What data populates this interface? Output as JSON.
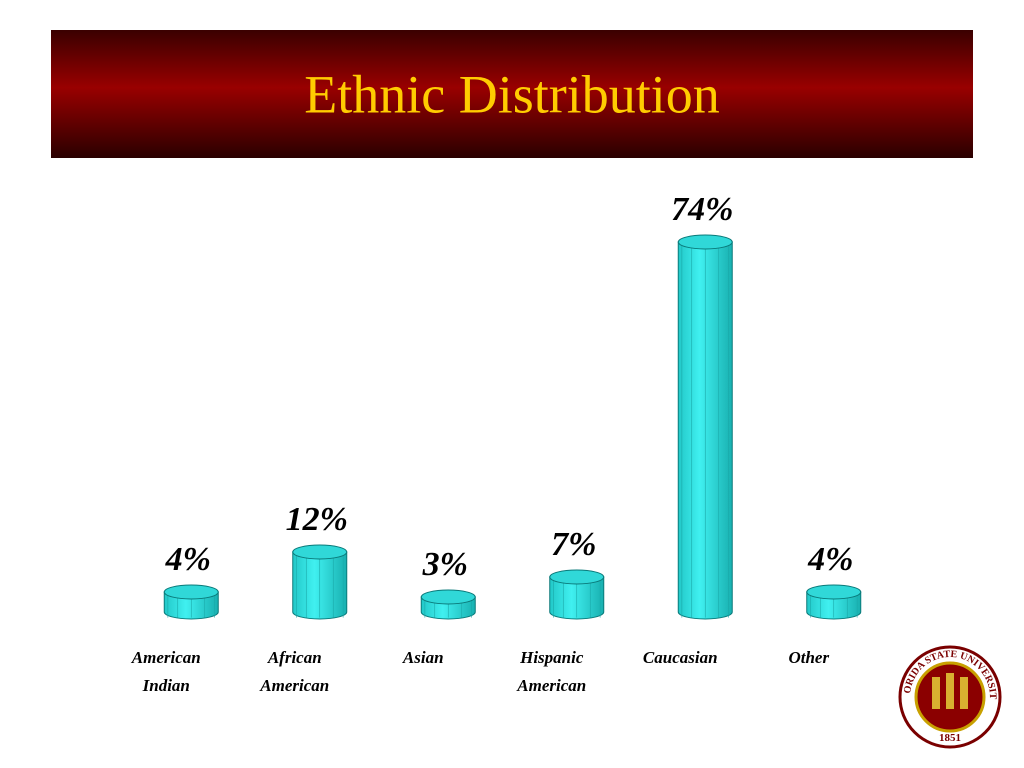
{
  "chart_data": {
    "type": "bar",
    "title": "Ethnic Distribution",
    "categories": [
      [
        "American",
        "Indian"
      ],
      [
        "African",
        "American"
      ],
      [
        "Asian"
      ],
      [
        "Hispanic",
        "American"
      ],
      [
        "Caucasian"
      ],
      [
        "Other"
      ]
    ],
    "values": [
      4,
      12,
      3,
      7,
      74,
      4
    ],
    "value_labels": [
      "4%",
      "12%",
      "3%",
      "7%",
      "74%",
      "4%"
    ],
    "color": "#33e0e0",
    "ylim": [
      0,
      80
    ]
  },
  "logo": {
    "name": "FLORIDA STATE UNIVERSITY",
    "year": "1851"
  }
}
